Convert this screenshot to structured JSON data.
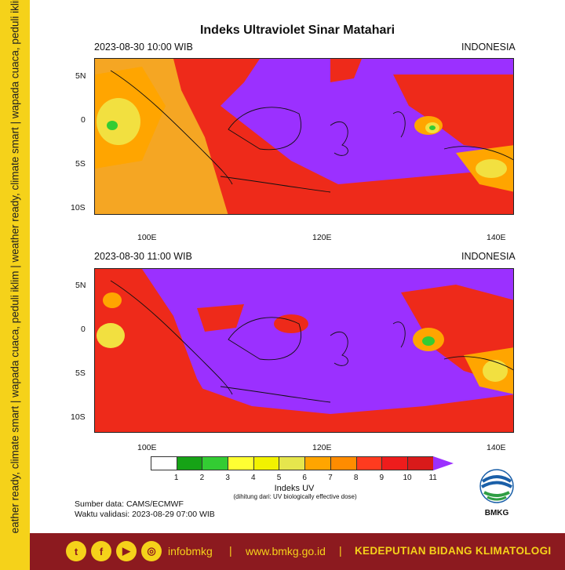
{
  "side_banner": {
    "text": "weather ready, climate smart  |  wapada cuaca, peduli iklim  |  weather ready, climate smart  |  wapada cuaca, peduli iklim"
  },
  "title": "Indeks Ultraviolet Sinar Matahari",
  "panels": [
    {
      "datetime": "2023-08-30  10:00 WIB",
      "region": "INDONESIA"
    },
    {
      "datetime": "2023-08-30  11:00 WIB",
      "region": "INDONESIA"
    }
  ],
  "lat_ticks": [
    "5N",
    "0",
    "5S",
    "10S"
  ],
  "lon_ticks": [
    "100E",
    "120E",
    "140E"
  ],
  "legend": {
    "title": "Indeks UV",
    "subtitle": "(dihitung dari: UV biologically effective dose)",
    "labels": [
      "1",
      "2",
      "3",
      "4",
      "5",
      "6",
      "7",
      "8",
      "9",
      "10",
      "11"
    ],
    "colors": [
      "#ffffff",
      "#16a316",
      "#33cc33",
      "#ffff33",
      "#f2f200",
      "#e6e64d",
      "#ffa500",
      "#ff8c00",
      "#ff3b1f",
      "#ee1c1c",
      "#d91a1a",
      "#9b30ff"
    ]
  },
  "source": {
    "line1": "Sumber data: CAMS/ECMWF",
    "line2": "Waktu validasi: 2023-08-29 07:00 WIB"
  },
  "logo": {
    "name": "BMKG"
  },
  "footer": {
    "social_icons": [
      "twitter-icon",
      "facebook-icon",
      "youtube-icon",
      "instagram-icon"
    ],
    "handle": "infobmkg",
    "sep1": "|",
    "website": "www.bmkg.go.id",
    "sep2": "|",
    "division": "KEDEPUTIAN BIDANG KLIMATOLOGI"
  },
  "colors": {
    "banner_yellow": "#f5d21a",
    "footer_red": "#8c1a1f",
    "uv_extreme": "#9b30ff",
    "uv_very_high": "#ee1c1c",
    "uv_high": "#ffa500"
  }
}
